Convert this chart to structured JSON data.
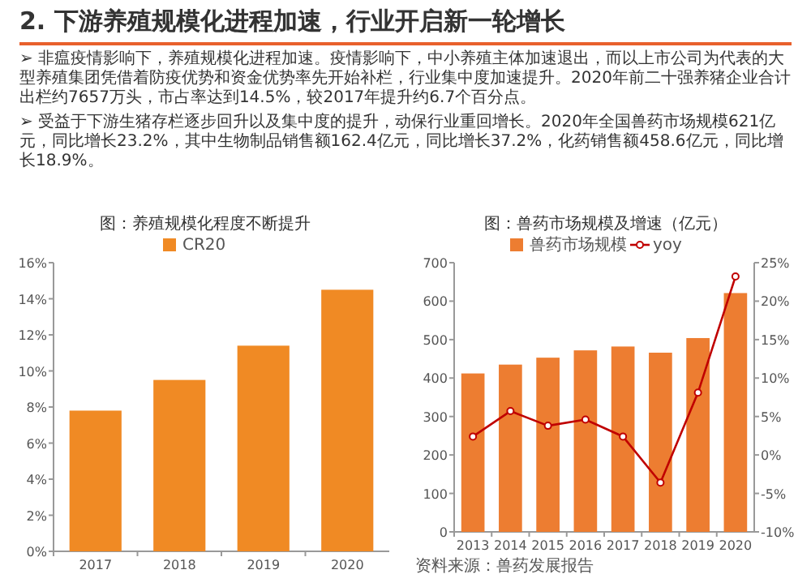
{
  "chart_data": [
    {
      "type": "other",
      "title": "2. 下游养殖规模化进程加速，行业开启新一轮增长",
      "annotations": [
        "➢ 非瘟疫情影响下，养殖规模化进程加速。疫情影响下，中小养殖主体加速退出，而以上市公司为代表的大型养殖集团凭借着防疫优势和资金优势率先开始补栏，行业集中度加速提升。2020年前二十强养猪企业合计出栏约7657万头，市占率达到14.5%，较2017年提升约6.7个百分点。",
        "➢ 受益于下游生猪存栏逐步回升以及集中度的提升，动保行业重回增长。2020年全国兽药市场规模621亿元，同比增长23.2%，其中生物制品销售额162.4亿元，同比增长37.2%，化药销售额458.6亿元，同比增长18.9%。"
      ]
    },
    {
      "type": "bar",
      "title": "图：养殖规模化程度不断提升",
      "categories": [
        "2017",
        "2018",
        "2019",
        "2020"
      ],
      "series": [
        {
          "name": "CR20",
          "color": "#f08a24",
          "values": [
            7.8,
            9.5,
            11.4,
            14.5
          ]
        }
      ],
      "ylim": [
        0,
        16
      ],
      "yticks": [
        {
          "value": 0,
          "label": "0%"
        },
        {
          "value": 2,
          "label": "2%"
        },
        {
          "value": 4,
          "label": "4%"
        },
        {
          "value": 6,
          "label": "6%"
        },
        {
          "value": 8,
          "label": "8%"
        },
        {
          "value": 10,
          "label": "10%"
        },
        {
          "value": 12,
          "label": "12%"
        },
        {
          "value": 14,
          "label": "14%"
        },
        {
          "value": 16,
          "label": "16%"
        }
      ],
      "legend": "top",
      "grid": false
    },
    {
      "type": "bar",
      "title": "图：兽药市场规模及增速（亿元）",
      "categories": [
        "2013",
        "2014",
        "2015",
        "2016",
        "2017",
        "2018",
        "2019",
        "2020"
      ],
      "series": [
        {
          "name": "兽药市场规模",
          "color": "#ed7d31",
          "values": [
            412,
            435,
            453,
            472,
            482,
            466,
            504,
            621
          ]
        },
        {
          "name": "yoy",
          "type": "line",
          "axis": "y2",
          "color": "#c00000",
          "marker": "circle",
          "values": [
            2.4,
            5.7,
            3.8,
            4.6,
            2.4,
            -3.6,
            8.1,
            23.2
          ]
        }
      ],
      "ylim": [
        0,
        700
      ],
      "yticks": [
        0,
        100,
        200,
        300,
        400,
        500,
        600,
        700
      ],
      "y2lim": [
        -10,
        25
      ],
      "y2ticks": [
        {
          "value": -10,
          "label": "-10%"
        },
        {
          "value": -5,
          "label": "-5%"
        },
        {
          "value": 0,
          "label": "0%"
        },
        {
          "value": 5,
          "label": "5%"
        },
        {
          "value": 10,
          "label": "10%"
        },
        {
          "value": 15,
          "label": "15%"
        },
        {
          "value": 20,
          "label": "20%"
        },
        {
          "value": 25,
          "label": "25%"
        }
      ],
      "legend": "top",
      "grid": false,
      "annotations": [
        "资料来源：兽药发展报告"
      ]
    }
  ]
}
